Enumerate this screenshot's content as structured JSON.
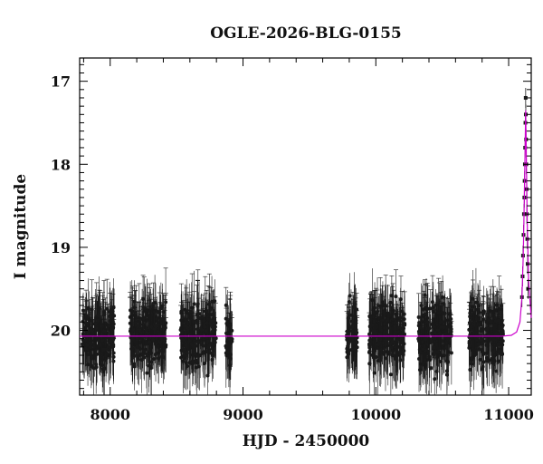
{
  "chart_data": {
    "type": "scatter",
    "title": "OGLE-2026-BLG-0155",
    "xlabel": "HJD - 2450000",
    "ylabel": "I magnitude",
    "xlim": [
      7770,
      11170
    ],
    "ylim": [
      20.78,
      16.72
    ],
    "y_inverted": true,
    "x_ticks": [
      8000,
      9000,
      10000,
      11000
    ],
    "y_ticks": [
      17,
      18,
      19,
      20
    ],
    "grid": false,
    "colors": {
      "points": "#1a1a1a",
      "model": "#cc00cc",
      "axes": "#000000"
    },
    "seasons": [
      {
        "x_start": 7790,
        "x_end": 8030,
        "mag_mean": 20.08,
        "mag_spread": 0.32,
        "err": 0.3
      },
      {
        "x_start": 8150,
        "x_end": 8420,
        "mag_mean": 20.05,
        "mag_spread": 0.32,
        "err": 0.3
      },
      {
        "x_start": 8530,
        "x_end": 8800,
        "mag_mean": 20.05,
        "mag_spread": 0.32,
        "err": 0.3
      },
      {
        "x_start": 8870,
        "x_end": 8920,
        "mag_mean": 20.15,
        "mag_spread": 0.35,
        "err": 0.3
      },
      {
        "x_start": 9780,
        "x_end": 9860,
        "mag_mean": 20.05,
        "mag_spread": 0.32,
        "err": 0.3
      },
      {
        "x_start": 9950,
        "x_end": 10220,
        "mag_mean": 20.05,
        "mag_spread": 0.32,
        "err": 0.3
      },
      {
        "x_start": 10320,
        "x_end": 10570,
        "mag_mean": 20.05,
        "mag_spread": 0.32,
        "err": 0.3
      },
      {
        "x_start": 10700,
        "x_end": 10960,
        "mag_mean": 20.05,
        "mag_spread": 0.32,
        "err": 0.3
      }
    ],
    "event_points": [
      [
        11100,
        19.6
      ],
      [
        11105,
        19.35
      ],
      [
        11108,
        19.1
      ],
      [
        11112,
        18.85
      ],
      [
        11115,
        18.6
      ],
      [
        11118,
        18.4
      ],
      [
        11120,
        18.2
      ],
      [
        11122,
        18.0
      ],
      [
        11124,
        17.8
      ],
      [
        11126,
        17.5
      ],
      [
        11128,
        17.2
      ],
      [
        11129,
        17.4
      ],
      [
        11131,
        17.7
      ],
      [
        11133,
        18.0
      ],
      [
        11135,
        18.3
      ],
      [
        11137,
        18.6
      ],
      [
        11140,
        18.9
      ],
      [
        11143,
        19.2
      ],
      [
        11146,
        19.5
      ]
    ],
    "model": {
      "baseline": 20.07,
      "peak_x": 11128,
      "peak_mag": 17.35,
      "points": [
        [
          7770,
          20.07
        ],
        [
          10950,
          20.07
        ],
        [
          11020,
          20.06
        ],
        [
          11060,
          20.02
        ],
        [
          11085,
          19.9
        ],
        [
          11100,
          19.6
        ],
        [
          11110,
          19.1
        ],
        [
          11118,
          18.4
        ],
        [
          11124,
          17.8
        ],
        [
          11128,
          17.35
        ],
        [
          11133,
          17.9
        ],
        [
          11140,
          18.7
        ],
        [
          11150,
          19.4
        ],
        [
          11170,
          19.85
        ]
      ]
    }
  }
}
